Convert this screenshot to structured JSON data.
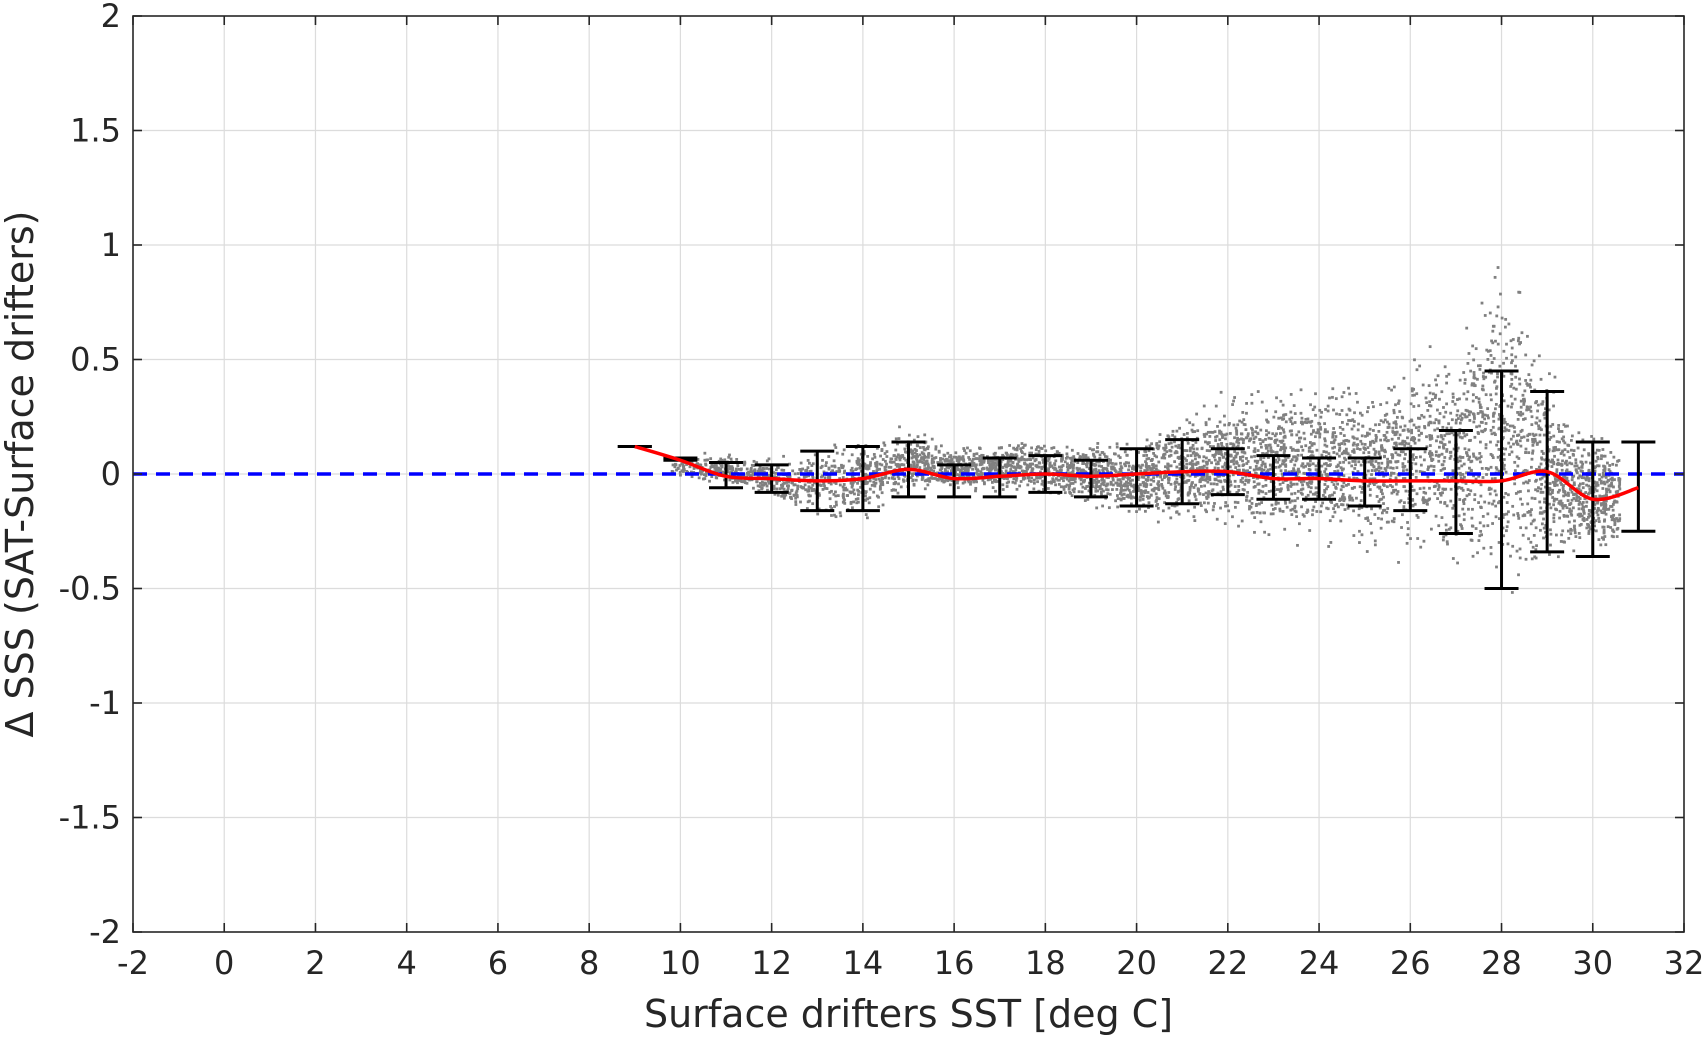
{
  "chart_data": {
    "type": "scatter",
    "title": "",
    "xlabel": "Surface drifters SST [deg C]",
    "ylabel": "Δ SSS (SAT-Surface drifters)",
    "xlim": [
      -2,
      32
    ],
    "ylim": [
      -2,
      2
    ],
    "x_ticks": [
      "-2",
      "0",
      "2",
      "4",
      "6",
      "8",
      "10",
      "12",
      "14",
      "16",
      "18",
      "20",
      "22",
      "24",
      "26",
      "28",
      "30",
      "32"
    ],
    "y_ticks": [
      "2",
      "1.5",
      "1",
      "0.5",
      "0",
      "-0.5",
      "-1",
      "-1.5",
      "-2"
    ],
    "grid": true,
    "colors": {
      "scatter": "#808080",
      "mean_line": "#ff0000",
      "zero_line": "#0000ff",
      "error_bars": "#000000"
    },
    "zero_reference_line": {
      "y": 0,
      "style": "dashed"
    },
    "scatter_envelope": [
      {
        "x": 9.8,
        "low": -0.02,
        "high": 0.06
      },
      {
        "x": 10.5,
        "low": -0.04,
        "high": 0.1
      },
      {
        "x": 11,
        "low": -0.05,
        "high": 0.1
      },
      {
        "x": 11.5,
        "low": -0.1,
        "high": 0.09
      },
      {
        "x": 12,
        "low": -0.14,
        "high": 0.08
      },
      {
        "x": 12.5,
        "low": -0.2,
        "high": 0.1
      },
      {
        "x": 13,
        "low": -0.22,
        "high": 0.13
      },
      {
        "x": 13.5,
        "low": -0.24,
        "high": 0.17
      },
      {
        "x": 14,
        "low": -0.25,
        "high": 0.2
      },
      {
        "x": 14.5,
        "low": -0.18,
        "high": 0.2
      },
      {
        "x": 15,
        "low": -0.12,
        "high": 0.22
      },
      {
        "x": 15.5,
        "low": -0.1,
        "high": 0.18
      },
      {
        "x": 16,
        "low": -0.1,
        "high": 0.14
      },
      {
        "x": 17,
        "low": -0.1,
        "high": 0.15
      },
      {
        "x": 18,
        "low": -0.12,
        "high": 0.17
      },
      {
        "x": 19,
        "low": -0.15,
        "high": 0.15
      },
      {
        "x": 20,
        "low": -0.22,
        "high": 0.18
      },
      {
        "x": 21,
        "low": -0.25,
        "high": 0.3
      },
      {
        "x": 22,
        "low": -0.28,
        "high": 0.38
      },
      {
        "x": 23,
        "low": -0.32,
        "high": 0.42
      },
      {
        "x": 24,
        "low": -0.36,
        "high": 0.45
      },
      {
        "x": 25,
        "low": -0.4,
        "high": 0.48
      },
      {
        "x": 26,
        "low": -0.42,
        "high": 0.55
      },
      {
        "x": 27,
        "low": -0.5,
        "high": 0.7
      },
      {
        "x": 27.6,
        "low": -0.6,
        "high": 0.95
      },
      {
        "x": 28,
        "low": -0.65,
        "high": 1.1
      },
      {
        "x": 28.5,
        "low": -0.6,
        "high": 0.9
      },
      {
        "x": 29,
        "low": -0.5,
        "high": 0.55
      },
      {
        "x": 29.5,
        "low": -0.45,
        "high": 0.35
      },
      {
        "x": 30,
        "low": -0.4,
        "high": 0.22
      },
      {
        "x": 30.5,
        "low": -0.4,
        "high": 0.2
      },
      {
        "x": 30.6,
        "low": -0.38,
        "high": 0.15
      }
    ],
    "mean_line": {
      "x": [
        9,
        10,
        11,
        12,
        13,
        14,
        15,
        16,
        17,
        18,
        19,
        20,
        21,
        22,
        23,
        24,
        25,
        26,
        27,
        28,
        29,
        30,
        31
      ],
      "y": [
        0.12,
        0.06,
        -0.01,
        -0.02,
        -0.03,
        -0.02,
        0.02,
        -0.02,
        -0.01,
        0.0,
        -0.01,
        0.0,
        0.01,
        0.01,
        -0.02,
        -0.02,
        -0.03,
        -0.03,
        -0.03,
        -0.03,
        0.01,
        -0.11,
        -0.06
      ]
    },
    "error_bars": {
      "x": [
        9,
        10,
        11,
        12,
        13,
        14,
        15,
        16,
        17,
        18,
        19,
        20,
        21,
        22,
        23,
        24,
        25,
        26,
        27,
        28,
        29,
        30,
        31
      ],
      "low": [
        0.12,
        0.06,
        -0.06,
        -0.08,
        -0.16,
        -0.16,
        -0.1,
        -0.1,
        -0.1,
        -0.08,
        -0.1,
        -0.14,
        -0.13,
        -0.09,
        -0.11,
        -0.11,
        -0.14,
        -0.16,
        -0.26,
        -0.5,
        -0.34,
        -0.36,
        -0.25
      ],
      "high": [
        0.12,
        0.07,
        0.05,
        0.04,
        0.1,
        0.12,
        0.14,
        0.04,
        0.07,
        0.08,
        0.06,
        0.11,
        0.15,
        0.11,
        0.08,
        0.07,
        0.07,
        0.11,
        0.19,
        0.45,
        0.36,
        0.14,
        0.14
      ]
    }
  }
}
